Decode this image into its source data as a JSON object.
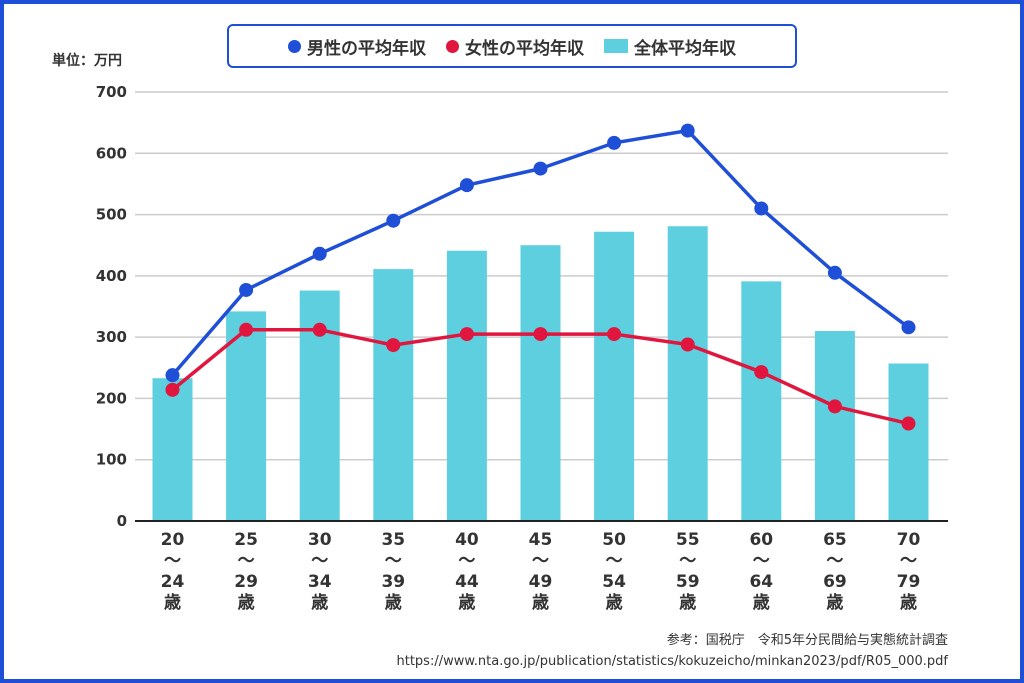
{
  "legend": {
    "male_label": "男性の平均年収",
    "female_label": "女性の平均年収",
    "total_label": "全体平均年収"
  },
  "unit_label": "単位：万円",
  "source": {
    "line1": "参考：国税庁　令和5年分民間給与実態統計調査",
    "line2": "https://www.nta.go.jp/publication/statistics/kokuzeicho/minkan2023/pdf/R05_000.pdf"
  },
  "colors": {
    "male": "#1f4fd6",
    "female": "#e0163e",
    "total": "#5dcfdf",
    "frame": "#1f4fd6",
    "grid": "#cccccc",
    "axis": "#222222"
  },
  "chart_data": {
    "type": "bar",
    "categories": [
      {
        "from": "20",
        "sep": "〜",
        "to": "24",
        "suffix": "歳"
      },
      {
        "from": "25",
        "sep": "〜",
        "to": "29",
        "suffix": "歳"
      },
      {
        "from": "30",
        "sep": "〜",
        "to": "34",
        "suffix": "歳"
      },
      {
        "from": "35",
        "sep": "〜",
        "to": "39",
        "suffix": "歳"
      },
      {
        "from": "40",
        "sep": "〜",
        "to": "44",
        "suffix": "歳"
      },
      {
        "from": "45",
        "sep": "〜",
        "to": "49",
        "suffix": "歳"
      },
      {
        "from": "50",
        "sep": "〜",
        "to": "54",
        "suffix": "歳"
      },
      {
        "from": "55",
        "sep": "〜",
        "to": "59",
        "suffix": "歳"
      },
      {
        "from": "60",
        "sep": "〜",
        "to": "64",
        "suffix": "歳"
      },
      {
        "from": "65",
        "sep": "〜",
        "to": "69",
        "suffix": "歳"
      },
      {
        "from": "70",
        "sep": "〜",
        "to": "79",
        "suffix": "歳"
      }
    ],
    "series": [
      {
        "name": "全体平均年収",
        "kind": "bar",
        "values": [
          233,
          342,
          376,
          411,
          441,
          450,
          472,
          481,
          391,
          310,
          257
        ]
      },
      {
        "name": "男性の平均年収",
        "kind": "line",
        "values": [
          238,
          377,
          436,
          490,
          548,
          575,
          617,
          637,
          510,
          405,
          316
        ]
      },
      {
        "name": "女性の平均年収",
        "kind": "line",
        "values": [
          214,
          312,
          312,
          287,
          305,
          305,
          305,
          288,
          243,
          187,
          159
        ]
      }
    ],
    "ylim": [
      0,
      700
    ],
    "yticks": [
      0,
      100,
      200,
      300,
      400,
      500,
      600,
      700
    ],
    "grid": true,
    "legend_position": "top-center"
  }
}
